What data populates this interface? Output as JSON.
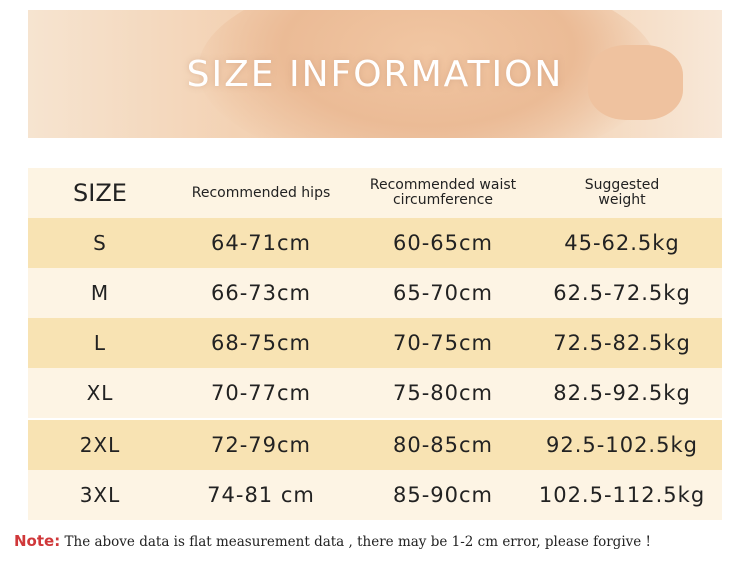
{
  "banner": {
    "title": "SIZE INFORMATION"
  },
  "table": {
    "headers": [
      "SIZE",
      "Recommended hips",
      "Recommended waist circumference",
      "Suggested weight"
    ],
    "rows": [
      [
        "S",
        "64-71cm",
        "60-65cm",
        "45-62.5kg"
      ],
      [
        "M",
        "66-73cm",
        "65-70cm",
        "62.5-72.5kg"
      ],
      [
        "L",
        "68-75cm",
        "70-75cm",
        "72.5-82.5kg"
      ],
      [
        "XL",
        "70-77cm",
        "75-80cm",
        "82.5-92.5kg"
      ],
      [
        "2XL",
        "72-79cm",
        "80-85cm",
        "92.5-102.5kg"
      ],
      [
        "3XL",
        "74-81 cm",
        "85-90cm",
        "102.5-112.5kg"
      ]
    ]
  },
  "note": {
    "label": "Note:",
    "text": " The above data is flat measurement data , there may be 1-2 cm error, please forgive !"
  },
  "colors": {
    "header_row": "#fdf4e3",
    "dark_row": "#f8e3b3",
    "light_row": "#fdf4e4",
    "note_label": "#d0383a"
  }
}
